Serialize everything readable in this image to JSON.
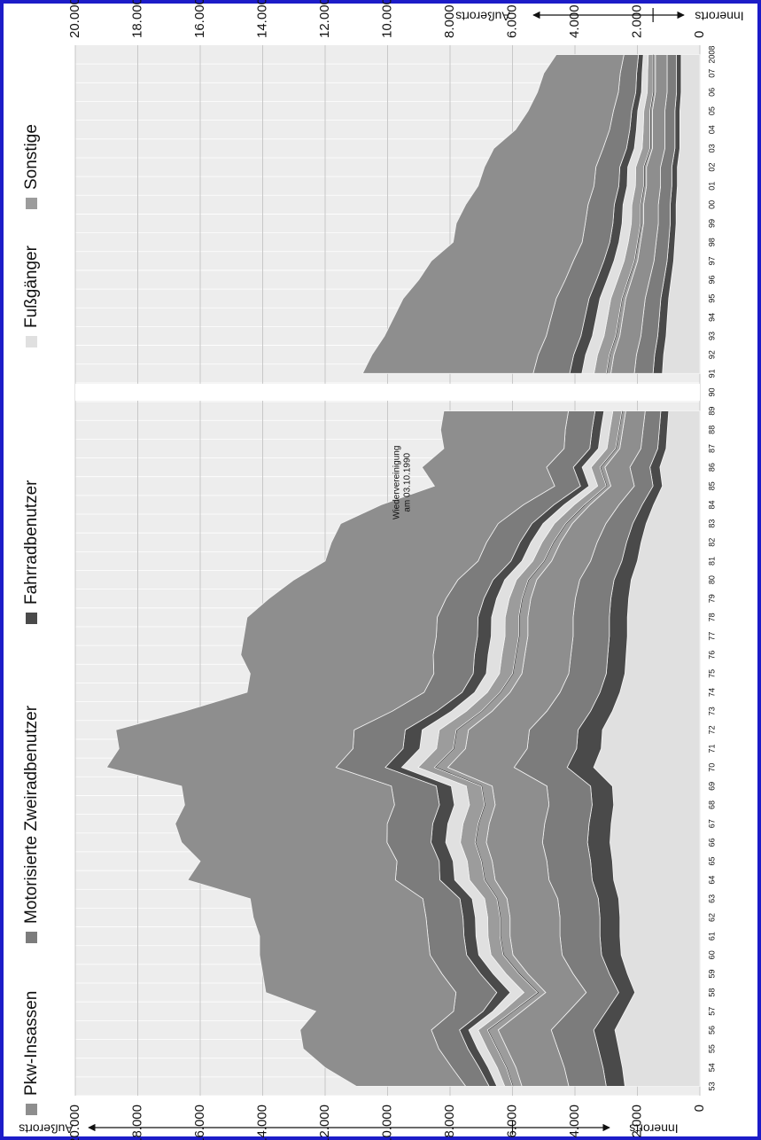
{
  "chart_data": {
    "type": "stacked_area",
    "categories": [
      "53",
      "54",
      "55",
      "56",
      "57",
      "58",
      "59",
      "60",
      "61",
      "62",
      "63",
      "64",
      "65",
      "66",
      "67",
      "68",
      "69",
      "70",
      "71",
      "72",
      "73",
      "74",
      "75",
      "76",
      "77",
      "78",
      "79",
      "80",
      "81",
      "82",
      "83",
      "84",
      "85",
      "86",
      "87",
      "88",
      "89",
      "90",
      "91",
      "92",
      "93",
      "94",
      "95",
      "96",
      "97",
      "98",
      "99",
      "00",
      "01",
      "02",
      "03",
      "04",
      "05",
      "06",
      "07",
      "2008"
    ],
    "series": [
      {
        "name": "Pkw-Insassen",
        "color": "#8e8e8e",
        "values": [
          1500,
          1550,
          1625,
          1700,
          1500,
          1300,
          1450,
          1575,
          1600,
          1600,
          1625,
          1725,
          1750,
          1800,
          1775,
          1725,
          1750,
          2125,
          1975,
          1950,
          1750,
          1600,
          1500,
          1475,
          1450,
          1450,
          1425,
          1375,
          1250,
          1175,
          1075,
          925,
          750,
          800,
          675,
          650,
          625,
          null,
          750,
          725,
          675,
          650,
          625,
          575,
          525,
          500,
          475,
          475,
          450,
          450,
          400,
          400,
          400,
          375,
          375,
          375
        ],
        "values_ausserorts": [
          3500,
          4060,
          4340,
          4200,
          4410,
          6090,
          5740,
          5460,
          5390,
          5530,
          5530,
          6650,
          6300,
          6580,
          6790,
          6720,
          6720,
          7350,
          7490,
          7630,
          6650,
          5670,
          5880,
          6160,
          6160,
          6090,
          5670,
          5250,
          4900,
          4970,
          5040,
          4550,
          3850,
          3990,
          3850,
          3990,
          3990,
          null,
          5460,
          5320,
          5180,
          5040,
          4900,
          4690,
          4550,
          4130,
          4130,
          3920,
          3710,
          3570,
          3500,
          3010,
          2730,
          2590,
          2450,
          2170
        ]
      },
      {
        "name": "Motorisierte Zweiradbenutzer",
        "color": "#7c7c7c",
        "values": [
          1200,
          1240,
          1300,
          1360,
          1200,
          1040,
          1160,
          1260,
          1280,
          1280,
          1300,
          1380,
          1400,
          1440,
          1420,
          1380,
          1400,
          1700,
          1580,
          1560,
          1400,
          1280,
          1200,
          1180,
          1160,
          1160,
          1140,
          1100,
          1000,
          940,
          860,
          740,
          600,
          640,
          540,
          520,
          500,
          null,
          600,
          580,
          540,
          520,
          500,
          460,
          420,
          400,
          380,
          380,
          360,
          360,
          320,
          320,
          320,
          300,
          300,
          300
        ],
        "values_ausserorts": [
          750,
          870,
          930,
          900,
          945,
          1305,
          1230,
          1170,
          1155,
          1185,
          1185,
          1425,
          1350,
          1410,
          1455,
          1440,
          1440,
          1575,
          1605,
          1635,
          1425,
          1215,
          1260,
          1320,
          1320,
          1305,
          1215,
          1125,
          1050,
          1065,
          1080,
          975,
          825,
          855,
          825,
          855,
          855,
          null,
          1170,
          1140,
          1110,
          1080,
          1050,
          1005,
          975,
          885,
          885,
          840,
          795,
          765,
          750,
          645,
          585,
          555,
          525,
          465
        ]
      },
      {
        "name": "Fahrradbenutzer",
        "color": "#4a4a4a",
        "values": [
          600,
          620,
          650,
          680,
          600,
          520,
          580,
          630,
          640,
          640,
          650,
          690,
          700,
          720,
          710,
          690,
          700,
          850,
          790,
          780,
          700,
          640,
          600,
          590,
          580,
          580,
          570,
          550,
          500,
          470,
          430,
          370,
          300,
          320,
          270,
          260,
          250,
          null,
          300,
          290,
          270,
          260,
          250,
          230,
          210,
          200,
          190,
          190,
          180,
          180,
          160,
          160,
          160,
          150,
          150,
          150
        ],
        "values_ausserorts": [
          250,
          290,
          310,
          300,
          315,
          435,
          410,
          390,
          385,
          395,
          395,
          475,
          450,
          470,
          485,
          480,
          480,
          525,
          535,
          545,
          475,
          405,
          420,
          440,
          440,
          435,
          405,
          375,
          350,
          355,
          360,
          325,
          275,
          285,
          275,
          285,
          285,
          null,
          390,
          380,
          370,
          360,
          350,
          335,
          325,
          295,
          295,
          280,
          265,
          255,
          250,
          215,
          195,
          185,
          175,
          155
        ]
      },
      {
        "name": "Fußgänger",
        "color": "#e0e0e0",
        "values": [
          2400,
          2480,
          2600,
          2720,
          2400,
          2080,
          2320,
          2520,
          2560,
          2560,
          2600,
          2760,
          2800,
          2880,
          2840,
          2760,
          2800,
          3400,
          3160,
          3120,
          2800,
          2560,
          2400,
          2360,
          2320,
          2320,
          2280,
          2200,
          2000,
          1880,
          1720,
          1480,
          1200,
          1280,
          1080,
          1040,
          1000,
          null,
          1200,
          1160,
          1080,
          1040,
          1000,
          920,
          840,
          800,
          760,
          760,
          720,
          720,
          640,
          640,
          640,
          600,
          600,
          600
        ],
        "values_ausserorts": [
          250,
          290,
          310,
          300,
          315,
          435,
          410,
          390,
          385,
          395,
          395,
          475,
          450,
          470,
          485,
          480,
          480,
          525,
          535,
          545,
          475,
          405,
          420,
          440,
          440,
          435,
          405,
          375,
          350,
          355,
          360,
          325,
          275,
          285,
          275,
          285,
          285,
          null,
          390,
          380,
          370,
          360,
          350,
          335,
          325,
          295,
          295,
          280,
          265,
          255,
          250,
          215,
          195,
          185,
          175,
          155
        ]
      },
      {
        "name": "Sonstige",
        "color": "#9c9c9c",
        "values": [
          300,
          310,
          325,
          340,
          300,
          260,
          290,
          315,
          320,
          320,
          325,
          345,
          350,
          360,
          355,
          345,
          350,
          425,
          395,
          390,
          350,
          320,
          300,
          295,
          290,
          290,
          285,
          275,
          250,
          235,
          215,
          185,
          150,
          160,
          135,
          130,
          125,
          null,
          150,
          145,
          135,
          130,
          125,
          115,
          105,
          100,
          95,
          95,
          90,
          90,
          80,
          80,
          80,
          75,
          75,
          75
        ],
        "values_ausserorts": [
          250,
          290,
          310,
          300,
          315,
          435,
          410,
          390,
          385,
          395,
          395,
          475,
          450,
          470,
          485,
          480,
          480,
          525,
          535,
          545,
          475,
          405,
          420,
          440,
          440,
          435,
          405,
          375,
          350,
          355,
          360,
          325,
          275,
          285,
          275,
          285,
          285,
          null,
          390,
          380,
          370,
          360,
          350,
          335,
          325,
          295,
          295,
          280,
          265,
          255,
          250,
          215,
          195,
          185,
          175,
          155
        ]
      }
    ],
    "ylim": [
      0,
      20000
    ],
    "yticks": [
      0,
      {
        "value": 2000,
        "label": "2.000"
      },
      {
        "value": 4000,
        "label": "4.000"
      },
      {
        "value": 6000,
        "label": "6.000"
      },
      {
        "value": 8000,
        "label": "8.000"
      },
      {
        "value": 10000,
        "label": "10.000"
      },
      {
        "value": 12000,
        "label": "12.000"
      },
      {
        "value": 14000,
        "label": "14.000"
      },
      {
        "value": 16000,
        "label": "16.000"
      },
      {
        "value": 18000,
        "label": "18.000"
      },
      {
        "value": 20000,
        "label": "20.000"
      }
    ],
    "grid": true,
    "side_labels": {
      "innerorts": "Innerorts",
      "ausserorts": "Außerorts"
    },
    "annotation": [
      "Wiedervereinigung",
      "am 03.10.1990"
    ]
  }
}
